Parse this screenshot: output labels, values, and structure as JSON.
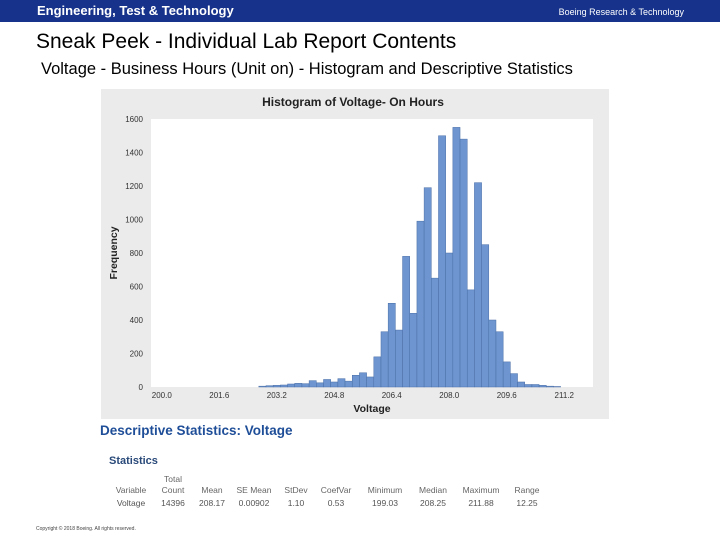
{
  "header": {
    "brand": "Engineering, Test & Technology",
    "org": "Boeing Research & Technology"
  },
  "slide": {
    "title": "Sneak Peek - Individual Lab Report Contents",
    "subtitle": "Voltage - Business Hours (Unit on) - Histogram and Descriptive Statistics"
  },
  "chart_data": {
    "type": "bar",
    "title": "Histogram of Voltage- On Hours",
    "xlabel": "Voltage",
    "ylabel": "Frequency",
    "xlim": [
      199.7,
      212.0
    ],
    "ylim": [
      0,
      1600
    ],
    "bin_width": 0.2,
    "x_ticks": [
      "200.0",
      "201.6",
      "203.2",
      "204.8",
      "206.4",
      "208.0",
      "209.6",
      "211.2"
    ],
    "y_ticks": [
      "0",
      "200",
      "400",
      "600",
      "800",
      "1000",
      "1200",
      "1400",
      "1600"
    ],
    "bin_starts": [
      202.7,
      202.9,
      203.1,
      203.3,
      203.5,
      203.7,
      203.9,
      204.1,
      204.3,
      204.5,
      204.7,
      204.9,
      205.1,
      205.3,
      205.5,
      205.7,
      205.9,
      206.1,
      206.3,
      206.5,
      206.7,
      206.9,
      207.1,
      207.3,
      207.5,
      207.7,
      207.9,
      208.1,
      208.3,
      208.5,
      208.7,
      208.9,
      209.1,
      209.3,
      209.5,
      209.7,
      209.9,
      210.1,
      210.3,
      210.5,
      210.7,
      210.9
    ],
    "values": [
      5,
      8,
      10,
      12,
      18,
      22,
      20,
      38,
      25,
      45,
      30,
      50,
      35,
      70,
      85,
      60,
      180,
      330,
      500,
      340,
      780,
      440,
      990,
      1190,
      650,
      1500,
      800,
      1550,
      1480,
      580,
      1220,
      850,
      400,
      330,
      150,
      80,
      30,
      15,
      15,
      10,
      5,
      3
    ],
    "bar_color": "#6e95cf",
    "grid": false
  },
  "stats": {
    "section_title": "Descriptive Statistics: Voltage",
    "table_title": "Statistics",
    "headers": [
      "Variable",
      "Total Count",
      "Mean",
      "SE Mean",
      "StDev",
      "CoefVar",
      "Minimum",
      "Median",
      "Maximum",
      "Range"
    ],
    "row": [
      "Voltage",
      "14396",
      "208.17",
      "0.00902",
      "1.10",
      "0.53",
      "199.03",
      "208.25",
      "211.88",
      "12.25"
    ]
  },
  "footer": {
    "copyright": "Copyright © 2018 Boeing. All rights reserved."
  }
}
